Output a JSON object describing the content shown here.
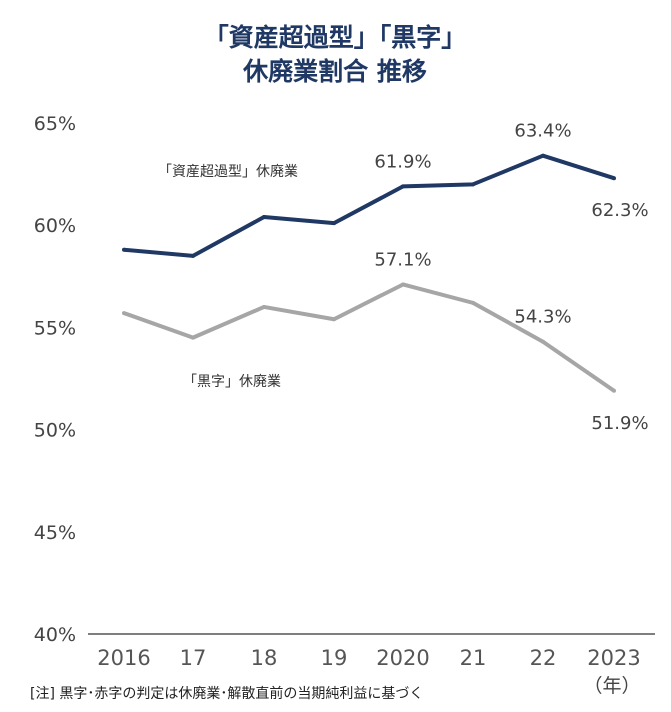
{
  "chart_data": {
    "type": "line",
    "title": [
      "「資産超過型」「黒字」",
      "休廃業割合  推移"
    ],
    "categories": [
      "2016",
      "17",
      "18",
      "19",
      "2020",
      "21",
      "22",
      "2023"
    ],
    "xlabel": "（年）",
    "ylabel": "",
    "ylim": [
      40,
      65
    ],
    "yticks": [
      "40%",
      "45%",
      "50%",
      "55%",
      "60%",
      "65%"
    ],
    "ytick_values": [
      40,
      45,
      50,
      55,
      60,
      65
    ],
    "series": [
      {
        "name": "「資産超過型」休廃業",
        "color": "#1f3864",
        "values": [
          58.8,
          58.5,
          60.4,
          60.1,
          61.9,
          62.0,
          63.4,
          62.3
        ],
        "labels": {
          "4": "61.9%",
          "6": "63.4%",
          "7": "62.3%"
        }
      },
      {
        "name": "「黒字」休廃業",
        "color": "#a6a6a6",
        "values": [
          55.7,
          54.5,
          56.0,
          55.4,
          57.1,
          56.2,
          54.3,
          51.9
        ],
        "labels": {
          "4": "57.1%",
          "6": "54.3%",
          "7": "51.9%"
        }
      }
    ],
    "note": "[注] 黒字･赤字の判定は休廃業･解散直前の当期純利益に基づく",
    "grid": false
  }
}
